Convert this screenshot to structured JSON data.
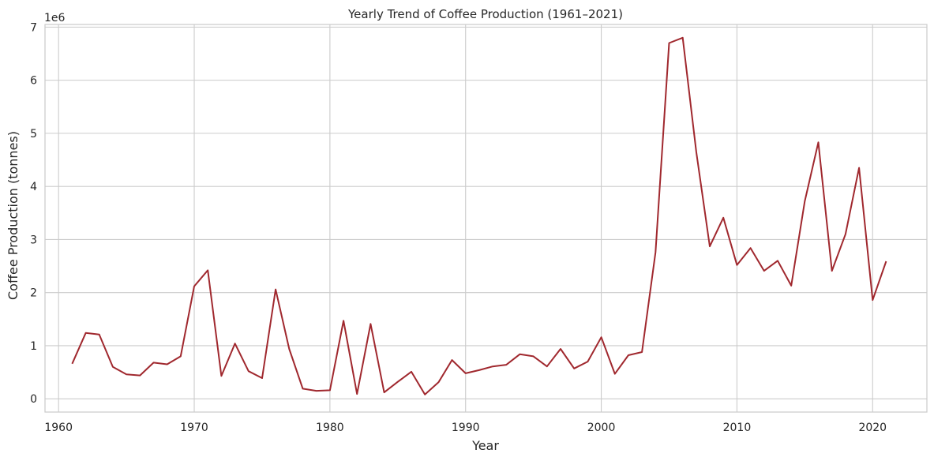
{
  "chart_data": {
    "type": "line",
    "title": "Yearly Trend of Coffee Production (1961–2021)",
    "xlabel": "Year",
    "ylabel": "Coffee Production (tonnes)",
    "y_offset_label": "1e6",
    "xlim": [
      1959,
      2024
    ],
    "ylim": [
      -250000,
      7050000
    ],
    "x_ticks": [
      1960,
      1970,
      1980,
      1990,
      2000,
      2010,
      2020
    ],
    "x_tick_labels": [
      "1960",
      "1970",
      "1980",
      "1990",
      "2000",
      "2010",
      "2020"
    ],
    "y_ticks": [
      0,
      1000000,
      2000000,
      3000000,
      4000000,
      5000000,
      6000000,
      7000000
    ],
    "y_tick_labels": [
      "0",
      "1",
      "2",
      "3",
      "4",
      "5",
      "6",
      "7"
    ],
    "grid": true,
    "color": "#a0282e",
    "series": [
      {
        "x": [
          1961,
          1962,
          1963,
          1964,
          1965,
          1966,
          1967,
          1968,
          1969,
          1970,
          1971,
          1972,
          1973,
          1974,
          1975,
          1976,
          1977,
          1978,
          1979,
          1980,
          1981,
          1982,
          1983,
          1984,
          1985,
          1986,
          1987,
          1988,
          1989,
          1990,
          1991,
          1992,
          1993,
          1994,
          1995,
          1996,
          1997,
          1998,
          1999,
          2000,
          2001,
          2002,
          2003,
          2004,
          2005,
          2006,
          2007,
          2008,
          2009,
          2010,
          2011,
          2012,
          2013,
          2014,
          2015,
          2016,
          2017,
          2018,
          2019,
          2020,
          2021
        ],
        "values": [
          660000,
          1240000,
          1210000,
          600000,
          460000,
          440000,
          680000,
          650000,
          800000,
          2120000,
          2420000,
          430000,
          1040000,
          520000,
          390000,
          2060000,
          940000,
          190000,
          150000,
          160000,
          1470000,
          90000,
          1410000,
          120000,
          320000,
          510000,
          80000,
          310000,
          730000,
          480000,
          540000,
          610000,
          640000,
          840000,
          800000,
          610000,
          940000,
          570000,
          700000,
          1160000,
          470000,
          820000,
          880000,
          2760000,
          6700000,
          6800000,
          4650000,
          2870000,
          3410000,
          2520000,
          2840000,
          2410000,
          2600000,
          2130000,
          3720000,
          4830000,
          2410000,
          3100000,
          4350000,
          1860000,
          2590000
        ]
      }
    ]
  }
}
